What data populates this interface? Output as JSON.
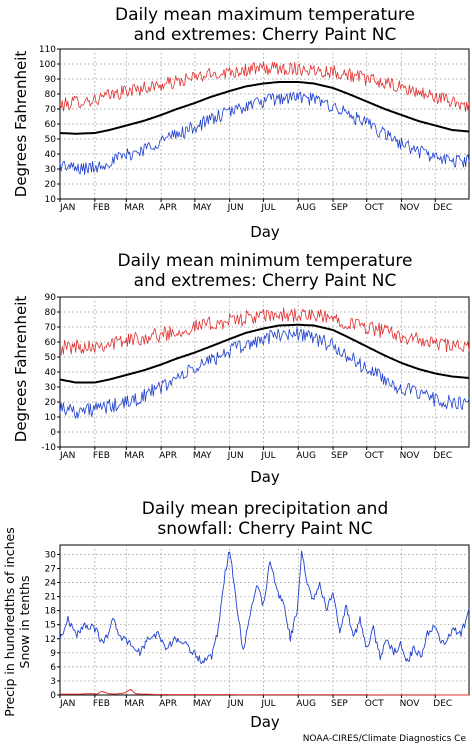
{
  "credit": "NOAA-CIRES/Climate Diagnostics Ce",
  "chart_data": [
    {
      "type": "line",
      "title_lines": [
        "Daily mean maximum temperature",
        "and extremes: Cherry Paint NC"
      ],
      "xlabel": "Day",
      "ylabel": "Degrees Fahrenheit",
      "ylim": [
        10,
        110
      ],
      "yticks": [
        10,
        20,
        30,
        40,
        50,
        60,
        70,
        80,
        90,
        100,
        110
      ],
      "xlim": [
        1,
        365
      ],
      "month_labels": [
        "JAN",
        "FEB",
        "MAR",
        "APR",
        "MAY",
        "JUN",
        "JUL",
        "AUG",
        "SEP",
        "OCT",
        "NOV",
        "DEC"
      ],
      "month_days": [
        1,
        32,
        60,
        91,
        121,
        152,
        182,
        213,
        244,
        274,
        305,
        335
      ],
      "grid": true,
      "series": [
        {
          "role": "record high",
          "color": "#e03030",
          "width": 0.8,
          "x": [
            1,
            15,
            32,
            45,
            60,
            75,
            91,
            105,
            121,
            135,
            152,
            166,
            182,
            196,
            213,
            227,
            244,
            258,
            274,
            290,
            305,
            320,
            335,
            350,
            365
          ],
          "y": [
            72,
            75,
            76,
            79,
            82,
            84,
            86,
            88,
            91,
            93,
            95,
            96,
            97,
            97,
            97,
            96,
            95,
            93,
            90,
            87,
            84,
            81,
            78,
            75,
            72
          ]
        },
        {
          "role": "mean",
          "color": "#000000",
          "width": 2,
          "x": [
            1,
            15,
            32,
            45,
            60,
            75,
            91,
            105,
            121,
            135,
            152,
            166,
            182,
            196,
            213,
            227,
            244,
            258,
            274,
            290,
            305,
            320,
            335,
            350,
            365
          ],
          "y": [
            54,
            53.5,
            54,
            56,
            59,
            62,
            66,
            70,
            74,
            78,
            82,
            85,
            87,
            88,
            88,
            87,
            84,
            80,
            75,
            70,
            66,
            62,
            59,
            56,
            55
          ]
        },
        {
          "role": "record low",
          "color": "#2040d0",
          "width": 0.8,
          "x": [
            1,
            15,
            32,
            45,
            60,
            75,
            91,
            105,
            121,
            135,
            152,
            166,
            182,
            196,
            213,
            227,
            244,
            258,
            274,
            290,
            305,
            320,
            335,
            350,
            365
          ],
          "y": [
            33,
            30,
            31,
            35,
            39,
            43,
            49,
            53,
            58,
            63,
            68,
            72,
            75,
            77,
            78,
            76,
            72,
            66,
            60,
            53,
            47,
            42,
            38,
            35,
            36
          ]
        }
      ]
    },
    {
      "type": "line",
      "title_lines": [
        "Daily mean minimum temperature",
        "and extremes: Cherry Paint NC"
      ],
      "xlabel": "Day",
      "ylabel": "Degrees Fahrenheit",
      "ylim": [
        -10,
        90
      ],
      "yticks": [
        -10,
        0,
        10,
        20,
        30,
        40,
        50,
        60,
        70,
        80,
        90
      ],
      "xlim": [
        1,
        365
      ],
      "month_labels": [
        "JAN",
        "FEB",
        "MAR",
        "APR",
        "MAY",
        "JUN",
        "JUL",
        "AUG",
        "SEP",
        "OCT",
        "NOV",
        "DEC"
      ],
      "month_days": [
        1,
        32,
        60,
        91,
        121,
        152,
        182,
        213,
        244,
        274,
        305,
        335
      ],
      "grid": true,
      "series": [
        {
          "role": "record high",
          "color": "#e03030",
          "width": 0.8,
          "x": [
            1,
            15,
            32,
            45,
            60,
            75,
            91,
            105,
            121,
            135,
            152,
            166,
            182,
            196,
            213,
            227,
            244,
            258,
            274,
            290,
            305,
            320,
            335,
            350,
            365
          ],
          "y": [
            56,
            57,
            58,
            59,
            61,
            63,
            65,
            67,
            70,
            72,
            74,
            76,
            77,
            78,
            78,
            77,
            76,
            73,
            70,
            67,
            64,
            61,
            59,
            57,
            56
          ]
        },
        {
          "role": "mean",
          "color": "#000000",
          "width": 2,
          "x": [
            1,
            15,
            32,
            45,
            60,
            75,
            91,
            105,
            121,
            135,
            152,
            166,
            182,
            196,
            213,
            227,
            244,
            258,
            274,
            290,
            305,
            320,
            335,
            350,
            365
          ],
          "y": [
            35,
            33,
            33,
            35,
            38,
            41,
            45,
            49,
            53,
            57,
            62,
            66,
            69,
            71,
            71.5,
            71,
            68,
            63,
            57,
            51,
            46,
            42,
            39,
            37,
            36
          ]
        },
        {
          "role": "record low",
          "color": "#2040d0",
          "width": 0.8,
          "x": [
            1,
            15,
            32,
            45,
            60,
            75,
            91,
            105,
            121,
            135,
            152,
            166,
            182,
            196,
            213,
            227,
            244,
            258,
            274,
            290,
            305,
            320,
            335,
            350,
            365
          ],
          "y": [
            17,
            14,
            15,
            17,
            19,
            24,
            30,
            36,
            42,
            48,
            54,
            58,
            62,
            65,
            66,
            63,
            57,
            50,
            42,
            35,
            29,
            25,
            22,
            19,
            18
          ]
        }
      ]
    },
    {
      "type": "line",
      "title_lines": [
        "Daily mean precipitation and",
        "snowfall: Cherry Paint NC"
      ],
      "xlabel": "Day",
      "ylabel_lines": [
        "Precip in hundredths of inches",
        "Snow in tenths"
      ],
      "ylim": [
        0,
        32
      ],
      "yticks": [
        0,
        3,
        6,
        9,
        12,
        15,
        18,
        21,
        24,
        27,
        30
      ],
      "xlim": [
        1,
        365
      ],
      "month_labels": [
        "JAN",
        "FEB",
        "MAR",
        "APR",
        "MAY",
        "JUN",
        "JUL",
        "AUG",
        "SEP",
        "OCT",
        "NOV",
        "DEC"
      ],
      "month_days": [
        1,
        32,
        60,
        91,
        121,
        152,
        182,
        213,
        244,
        274,
        305,
        335
      ],
      "grid": true,
      "series": [
        {
          "role": "precipitation",
          "color": "#2040d0",
          "width": 0.9,
          "x": [
            1,
            8,
            16,
            24,
            32,
            40,
            48,
            56,
            64,
            72,
            80,
            88,
            96,
            104,
            112,
            120,
            128,
            136,
            142,
            148,
            152,
            158,
            164,
            170,
            176,
            182,
            188,
            194,
            200,
            206,
            212,
            216,
            220,
            226,
            232,
            238,
            244,
            250,
            256,
            262,
            268,
            274,
            280,
            286,
            292,
            298,
            304,
            310,
            316,
            322,
            328,
            334,
            340,
            346,
            352,
            358,
            365
          ],
          "y": [
            12,
            16,
            13,
            15,
            14,
            11,
            16,
            12,
            11,
            9,
            12,
            13,
            10,
            12,
            11,
            9,
            7,
            8,
            14,
            26,
            31,
            20,
            9,
            17,
            24,
            19,
            29,
            22,
            20,
            12,
            18,
            31,
            25,
            20,
            24,
            18,
            22,
            14,
            19,
            12,
            16,
            10,
            14,
            8,
            12,
            9,
            11,
            7,
            10,
            8,
            13,
            15,
            11,
            12,
            14,
            13,
            18
          ]
        },
        {
          "role": "snowfall",
          "color": "#e03030",
          "width": 1,
          "x": [
            1,
            20,
            28,
            34,
            38,
            44,
            50,
            58,
            64,
            68,
            72,
            78,
            86,
            365
          ],
          "y": [
            0.2,
            0.2,
            0.3,
            0.2,
            0.8,
            0.3,
            0.2,
            0.4,
            1.2,
            0.3,
            0.2,
            0.2,
            0.1,
            0
          ]
        }
      ]
    }
  ]
}
